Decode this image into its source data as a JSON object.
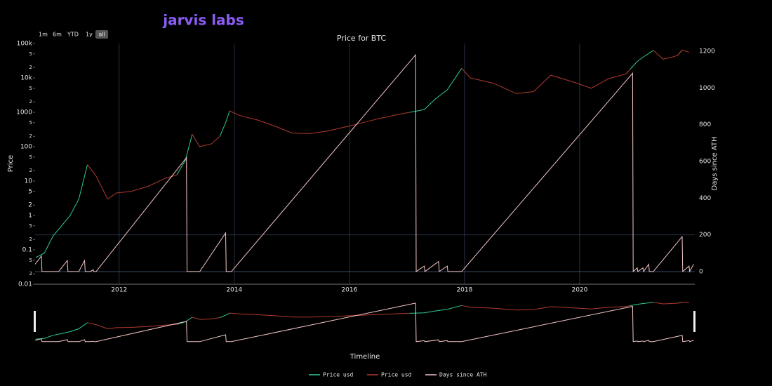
{
  "logo": "jarvis labs",
  "range_buttons": [
    "1m",
    "6m",
    "YTD",
    "1y",
    "all"
  ],
  "chart_data": {
    "type": "line",
    "title": "Price for BTC",
    "xlabel": "Timeline",
    "ylabel": "Price",
    "y2label": "Days since ATH",
    "xlim": [
      2010.54,
      2022.0
    ],
    "xticks": [
      2012,
      2014,
      2016,
      2018,
      2020
    ],
    "ylim": [
      0.01,
      100000
    ],
    "yscale": "log",
    "yticks": [
      0.01,
      {
        "value": 0.02,
        "label": "2"
      },
      {
        "value": 0.05,
        "label": "5"
      },
      0.1,
      {
        "value": 0.2,
        "label": "2"
      },
      {
        "value": 0.5,
        "label": "5"
      },
      1,
      2,
      5,
      10,
      {
        "value": 20,
        "label": "2"
      },
      {
        "value": 50,
        "label": "5"
      },
      100,
      {
        "value": 200,
        "label": "2"
      },
      {
        "value": 500,
        "label": "5"
      },
      1000,
      {
        "value": 2000,
        "label": "2"
      },
      {
        "value": 5000,
        "label": "5"
      },
      {
        "value": 10000,
        "label": "10k"
      },
      {
        "value": 20000,
        "label": "2"
      },
      {
        "value": 50000,
        "label": "5"
      },
      {
        "value": 100000,
        "label": "100k"
      }
    ],
    "y2lim": [
      -69,
      1242
    ],
    "y2ticks": [
      0,
      200,
      400,
      600,
      800,
      1000,
      1200
    ],
    "grid": true,
    "legend": "bottom",
    "x": [
      2010.55,
      2010.7,
      2010.85,
      2011.0,
      2011.15,
      2011.3,
      2011.45,
      2011.6,
      2011.8,
      2011.95,
      2012.2,
      2012.5,
      2012.8,
      2013.0,
      2013.15,
      2013.27,
      2013.4,
      2013.6,
      2013.75,
      2013.85,
      2013.92,
      2014.1,
      2014.4,
      2014.7,
      2015.0,
      2015.3,
      2015.6,
      2016.0,
      2016.5,
      2016.9,
      2017.05,
      2017.3,
      2017.5,
      2017.7,
      2017.95,
      2018.1,
      2018.5,
      2018.9,
      2019.2,
      2019.5,
      2019.9,
      2020.2,
      2020.5,
      2020.8,
      2020.88,
      2021.0,
      2021.1,
      2021.28,
      2021.45,
      2021.6,
      2021.7,
      2021.78,
      2021.9
    ],
    "series": [
      {
        "name": "Price usd",
        "color": "#2ecc8f",
        "values": [
          0.06,
          0.08,
          0.25,
          0.5,
          1,
          3,
          30,
          null,
          null,
          null,
          null,
          null,
          null,
          15,
          40,
          230,
          null,
          null,
          200,
          500,
          1100,
          null,
          null,
          null,
          null,
          null,
          null,
          null,
          null,
          null,
          1000,
          1200,
          2500,
          4500,
          19000,
          null,
          null,
          null,
          null,
          null,
          null,
          null,
          null,
          null,
          18000,
          30000,
          40000,
          63000,
          null,
          null,
          45000,
          65000,
          null
        ]
      },
      {
        "name": "Price usd",
        "color": "#b03a2e",
        "values": [
          null,
          null,
          null,
          null,
          null,
          null,
          30,
          14,
          3,
          4.5,
          5,
          7,
          12,
          15,
          null,
          230,
          100,
          120,
          200,
          null,
          1100,
          800,
          600,
          400,
          250,
          240,
          280,
          400,
          650,
          900,
          1000,
          null,
          null,
          null,
          19000,
          10000,
          7000,
          3500,
          4000,
          12000,
          7500,
          5000,
          9500,
          13000,
          18000,
          null,
          null,
          63000,
          35000,
          40000,
          45000,
          65000,
          55000
        ]
      },
      {
        "name": "Days since ATH",
        "color": "#f4c6c6",
        "axis": "y2",
        "x": [
          2010.54,
          2010.65,
          2010.66,
          2010.95,
          2011.1,
          2011.11,
          2011.3,
          2011.4,
          2011.41,
          2011.5,
          2011.55,
          2011.56,
          2011.6,
          2013.17,
          2013.18,
          2013.4,
          2013.85,
          2013.86,
          2013.95,
          2017.15,
          2017.16,
          2017.3,
          2017.31,
          2017.55,
          2017.56,
          2017.7,
          2017.71,
          2017.95,
          2020.92,
          2020.93,
          2021.0,
          2021.01,
          2021.1,
          2021.11,
          2021.2,
          2021.21,
          2021.28,
          2021.78,
          2021.79,
          2021.9,
          2021.91,
          2021.98
        ],
        "values": [
          40,
          85,
          0,
          0,
          60,
          0,
          0,
          60,
          0,
          0,
          10,
          0,
          0,
          620,
          0,
          0,
          210,
          0,
          0,
          1180,
          0,
          30,
          0,
          55,
          0,
          30,
          0,
          0,
          1080,
          0,
          20,
          0,
          20,
          0,
          40,
          0,
          0,
          190,
          0,
          30,
          0,
          40
        ]
      }
    ]
  }
}
